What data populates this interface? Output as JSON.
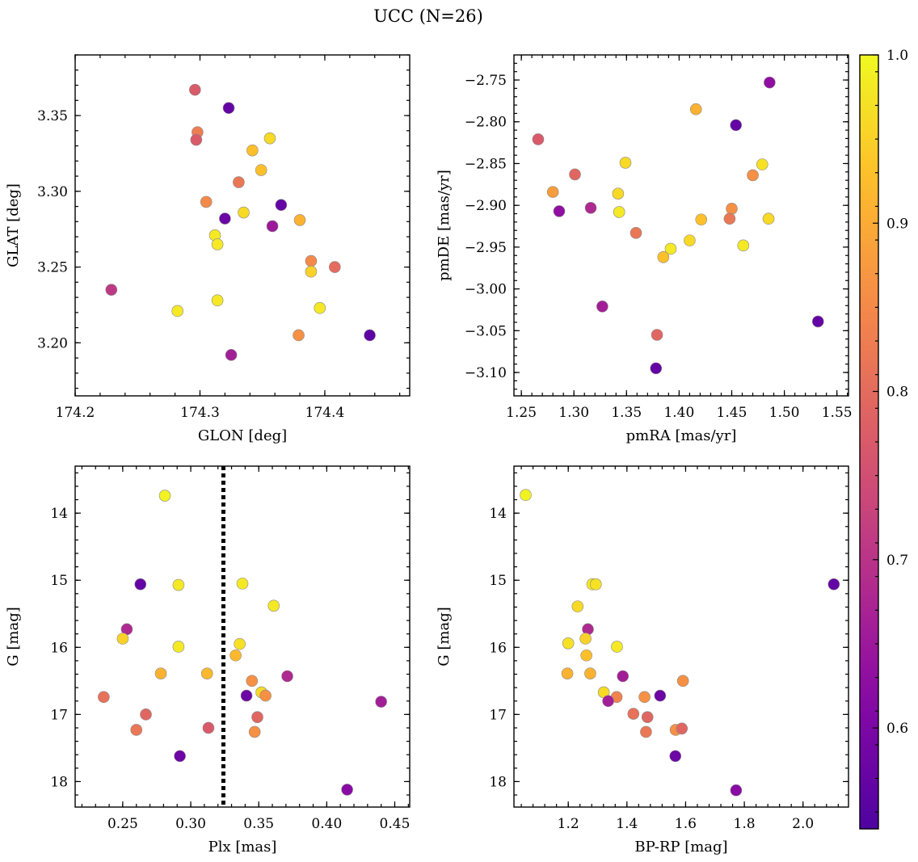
{
  "figure": {
    "title": "UCC (N=26)"
  },
  "colorbar": {
    "range": [
      0.54,
      1.0
    ],
    "ticks": [
      0.6,
      0.7,
      0.8,
      0.9,
      1.0
    ],
    "tick_labels": [
      "0.6",
      "0.7",
      "0.8",
      "0.9",
      "1.0"
    ],
    "colormap": "plasma"
  },
  "chart_data": [
    {
      "type": "scatter",
      "id": "glon-glat",
      "xlabel": "GLON [deg]",
      "ylabel": "GLAT [deg]",
      "xlim": [
        174.2,
        174.468
      ],
      "ylim": [
        3.165,
        3.39
      ],
      "xticks": [
        174.2,
        174.3,
        174.4
      ],
      "xtick_labels": [
        "174.2",
        "174.3",
        "174.4"
      ],
      "yticks": [
        3.2,
        3.25,
        3.3,
        3.35
      ],
      "ytick_labels": [
        "3.20",
        "3.25",
        "3.30",
        "3.35"
      ],
      "x": [
        174.296,
        174.323,
        174.298,
        174.297,
        174.356,
        174.342,
        174.349,
        174.331,
        174.305,
        174.365,
        174.335,
        174.32,
        174.38,
        174.358,
        174.312,
        174.314,
        174.389,
        174.408,
        174.389,
        174.229,
        174.396,
        174.282,
        174.314,
        174.379,
        174.436,
        174.325
      ],
      "y": [
        3.367,
        3.355,
        3.339,
        3.334,
        3.335,
        3.327,
        3.314,
        3.306,
        3.293,
        3.291,
        3.286,
        3.282,
        3.281,
        3.277,
        3.271,
        3.265,
        3.254,
        3.25,
        3.247,
        3.235,
        3.223,
        3.221,
        3.228,
        3.205,
        3.205,
        3.192
      ],
      "color": [
        0.77,
        0.57,
        0.83,
        0.77,
        0.96,
        0.93,
        0.93,
        0.82,
        0.85,
        0.57,
        0.96,
        0.58,
        0.91,
        0.65,
        0.98,
        0.98,
        0.85,
        0.8,
        0.95,
        0.71,
        0.98,
        0.98,
        0.98,
        0.86,
        0.56,
        0.66
      ]
    },
    {
      "type": "scatter",
      "id": "pm",
      "xlabel": "pmRA [mas/yr]",
      "ylabel": "pmDE [mas/yr]",
      "xlim": [
        1.243,
        1.561
      ],
      "ylim": [
        -3.128,
        -2.72
      ],
      "xticks": [
        1.25,
        1.3,
        1.35,
        1.4,
        1.45,
        1.5,
        1.55
      ],
      "xtick_labels": [
        "1.25",
        "1.30",
        "1.35",
        "1.40",
        "1.45",
        "1.50",
        "1.55"
      ],
      "yticks": [
        -3.1,
        -3.05,
        -3.0,
        -2.95,
        -2.9,
        -2.85,
        -2.8,
        -2.75
      ],
      "ytick_labels": [
        "−3.10",
        "−3.05",
        "−3.00",
        "−2.95",
        "−2.90",
        "−2.85",
        "−2.80",
        "−2.75"
      ],
      "x": [
        1.486,
        1.416,
        1.454,
        1.266,
        1.349,
        1.479,
        1.301,
        1.47,
        1.28,
        1.342,
        1.286,
        1.316,
        1.45,
        1.343,
        1.448,
        1.421,
        1.485,
        1.359,
        1.461,
        1.41,
        1.392,
        1.385,
        1.327,
        1.379,
        1.378,
        1.532
      ],
      "y": [
        -2.753,
        -2.785,
        -2.804,
        -2.821,
        -2.849,
        -2.851,
        -2.863,
        -2.864,
        -2.884,
        -2.886,
        -2.907,
        -2.903,
        -2.904,
        -2.908,
        -2.916,
        -2.917,
        -2.916,
        -2.933,
        -2.948,
        -2.942,
        -2.952,
        -2.962,
        -3.021,
        -3.055,
        -3.095,
        -3.039
      ],
      "color": [
        0.63,
        0.91,
        0.57,
        0.77,
        0.96,
        0.97,
        0.79,
        0.86,
        0.88,
        0.96,
        0.63,
        0.68,
        0.86,
        0.98,
        0.82,
        0.93,
        0.96,
        0.82,
        0.98,
        0.96,
        0.98,
        0.93,
        0.66,
        0.79,
        0.57,
        0.57
      ]
    },
    {
      "type": "scatter",
      "id": "plx-g",
      "xlabel": "Plx [mas]",
      "ylabel": "G [mag]",
      "xlim": [
        0.215,
        0.461
      ],
      "ylim": [
        18.38,
        13.3
      ],
      "xticks": [
        0.25,
        0.3,
        0.35,
        0.4,
        0.45
      ],
      "xtick_labels": [
        "0.25",
        "0.30",
        "0.35",
        "0.40",
        "0.45"
      ],
      "yticks": [
        14,
        15,
        16,
        17,
        18
      ],
      "ytick_labels": [
        "14",
        "15",
        "16",
        "17",
        "18"
      ],
      "reference_line": {
        "x": 0.324,
        "style": "dotted"
      },
      "x": [
        0.281,
        0.263,
        0.291,
        0.338,
        0.361,
        0.253,
        0.25,
        0.291,
        0.336,
        0.333,
        0.278,
        0.312,
        0.345,
        0.341,
        0.371,
        0.352,
        0.355,
        0.236,
        0.44,
        0.267,
        0.349,
        0.26,
        0.313,
        0.347,
        0.292,
        0.415
      ],
      "y": [
        13.74,
        15.06,
        15.07,
        15.05,
        15.38,
        15.73,
        15.87,
        15.99,
        15.95,
        16.12,
        16.39,
        16.39,
        16.5,
        16.72,
        16.43,
        16.67,
        16.72,
        16.74,
        16.81,
        17.0,
        17.04,
        17.23,
        17.2,
        17.26,
        17.62,
        18.12
      ],
      "color": [
        0.99,
        0.57,
        0.98,
        0.98,
        0.98,
        0.68,
        0.95,
        0.98,
        0.97,
        0.92,
        0.91,
        0.92,
        0.86,
        0.58,
        0.68,
        0.96,
        0.86,
        0.81,
        0.66,
        0.79,
        0.79,
        0.82,
        0.77,
        0.86,
        0.58,
        0.62
      ]
    },
    {
      "type": "scatter",
      "id": "cmd",
      "xlabel": "BP-RP [mag]",
      "ylabel": "G [mag]",
      "xlim": [
        1.015,
        2.155
      ],
      "ylim": [
        18.38,
        13.3
      ],
      "xticks": [
        1.2,
        1.4,
        1.6,
        1.8,
        2.0
      ],
      "xtick_labels": [
        "1.2",
        "1.4",
        "1.6",
        "1.8",
        "2.0"
      ],
      "yticks": [
        14,
        15,
        16,
        17,
        18
      ],
      "ytick_labels": [
        "14",
        "15",
        "16",
        "17",
        "18"
      ],
      "x": [
        1.055,
        2.105,
        1.282,
        1.294,
        1.232,
        1.267,
        1.259,
        1.2,
        1.366,
        1.262,
        1.197,
        1.275,
        1.386,
        1.591,
        1.513,
        1.321,
        1.365,
        1.46,
        1.336,
        1.422,
        1.47,
        1.566,
        1.587,
        1.465,
        1.565,
        1.772
      ],
      "y": [
        13.73,
        15.06,
        15.06,
        15.06,
        15.39,
        15.73,
        15.87,
        15.94,
        15.99,
        16.12,
        16.39,
        16.39,
        16.43,
        16.5,
        16.72,
        16.67,
        16.74,
        16.74,
        16.8,
        16.99,
        17.04,
        17.23,
        17.21,
        17.26,
        17.62,
        18.13
      ],
      "color": [
        0.99,
        0.57,
        0.98,
        0.97,
        0.96,
        0.68,
        0.95,
        0.97,
        0.98,
        0.93,
        0.91,
        0.91,
        0.66,
        0.86,
        0.58,
        0.96,
        0.84,
        0.86,
        0.66,
        0.81,
        0.79,
        0.86,
        0.79,
        0.82,
        0.58,
        0.62
      ]
    }
  ]
}
